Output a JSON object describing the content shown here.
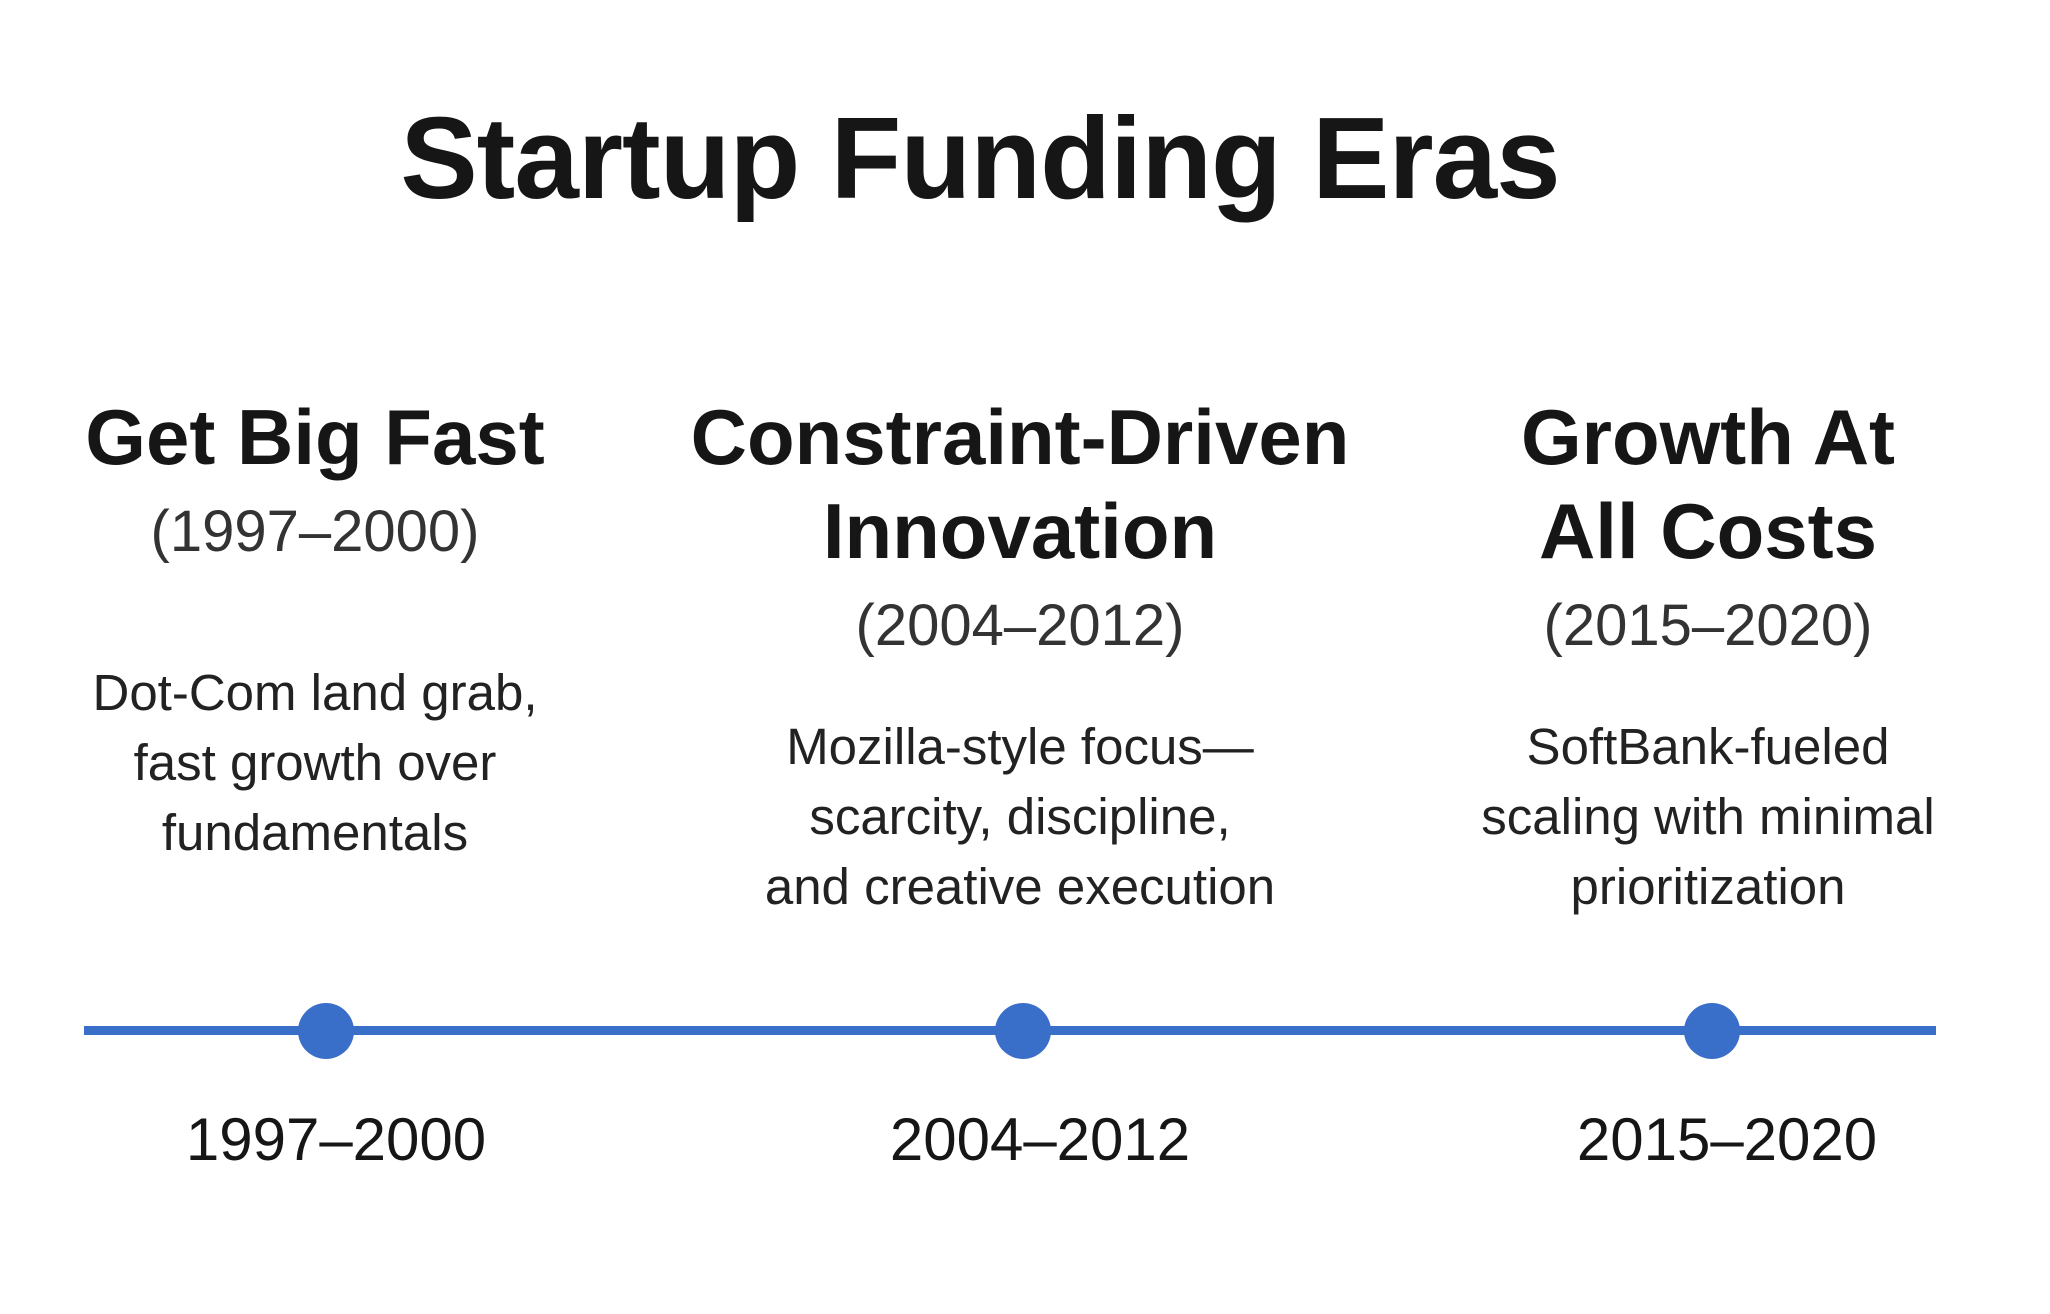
{
  "title": "Startup Funding Eras",
  "accent_color": "#3a6fc9",
  "eras": [
    {
      "title_line1": "Get Big Fast",
      "title_line2": "",
      "range": "(1997–2000)",
      "desc_line1": "Dot-Com land grab,",
      "desc_line2": "fast growth over",
      "desc_line3": "fundamentals",
      "axis_label": "1997–2000"
    },
    {
      "title_line1": "Constraint-Driven",
      "title_line2": "Innovation",
      "range": "(2004–2012)",
      "desc_line1": "Mozilla-style focus—",
      "desc_line2": "scarcity, discipline,",
      "desc_line3": "and creative execution",
      "axis_label": "2004–2012"
    },
    {
      "title_line1": "Growth At",
      "title_line2": "All Costs",
      "range": "(2015–2020)",
      "desc_line1": "SoftBank-fueled",
      "desc_line2": "scaling with minimal",
      "desc_line3": "prioritization",
      "axis_label": "2015–2020"
    }
  ]
}
